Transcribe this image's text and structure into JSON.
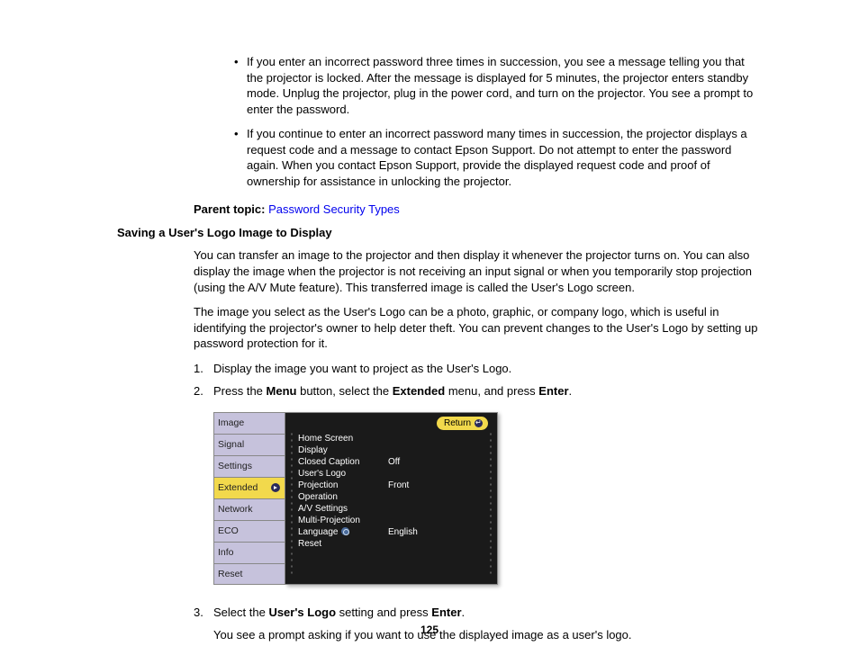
{
  "bullets": [
    "If you enter an incorrect password three times in succession, you see a message telling you that the projector is locked. After the message is displayed for 5 minutes, the projector enters standby mode. Unplug the projector, plug in the power cord, and turn on the projector. You see a prompt to enter the password.",
    "If you continue to enter an incorrect password many times in succession, the projector displays a request code and a message to contact Epson Support. Do not attempt to enter the password again. When you contact Epson Support, provide the displayed request code and proof of ownership for assistance in unlocking the projector."
  ],
  "parent_topic": {
    "label": "Parent topic: ",
    "link": "Password Security Types"
  },
  "section_heading": "Saving a User's Logo Image to Display",
  "para1": "You can transfer an image to the projector and then display it whenever the projector turns on. You can also display the image when the projector is not receiving an input signal or when you temporarily stop projection (using the A/V Mute feature). This transferred image is called the User's Logo screen.",
  "para2": "The image you select as the User's Logo can be a photo, graphic, or company logo, which is useful in identifying the projector's owner to help deter theft. You can prevent changes to the User's Logo by setting up password protection for it.",
  "steps": {
    "s1_num": "1.",
    "s1": "Display the image you want to project as the User's Logo.",
    "s2_num": "2.",
    "s2_pre": "Press the ",
    "s2_b1": "Menu",
    "s2_mid": " button, select the ",
    "s2_b2": "Extended",
    "s2_mid2": " menu, and press ",
    "s2_b3": "Enter",
    "s2_post": ".",
    "s3_num": "3.",
    "s3_pre": "Select the ",
    "s3_b1": "User's Logo",
    "s3_mid": " setting and press ",
    "s3_b2": "Enter",
    "s3_post": ".",
    "s3_follow": "You see a prompt asking if you want to use the displayed image as a user's logo."
  },
  "menu": {
    "return_label": "Return",
    "tabs": [
      "Image",
      "Signal",
      "Settings",
      "Extended",
      "Network",
      "ECO",
      "Info",
      "Reset"
    ],
    "active_tab_index": 3,
    "panel_items": [
      {
        "label": "Home Screen",
        "value": ""
      },
      {
        "label": "Display",
        "value": ""
      },
      {
        "label": "Closed Caption",
        "value": "Off"
      },
      {
        "label": "User's Logo",
        "value": ""
      },
      {
        "label": "Projection",
        "value": "Front"
      },
      {
        "label": "Operation",
        "value": ""
      },
      {
        "label": "A/V Settings",
        "value": ""
      },
      {
        "label": "Multi-Projection",
        "value": ""
      },
      {
        "label": "Language",
        "value": "English",
        "icon": true
      },
      {
        "label": "Reset",
        "value": ""
      }
    ],
    "colors": {
      "tab_bg": "#c6c2dc",
      "tab_active_bg": "#f2d94c",
      "panel_bg": "#1a1a1a",
      "text": "#ffffff"
    }
  },
  "page_number": "125"
}
